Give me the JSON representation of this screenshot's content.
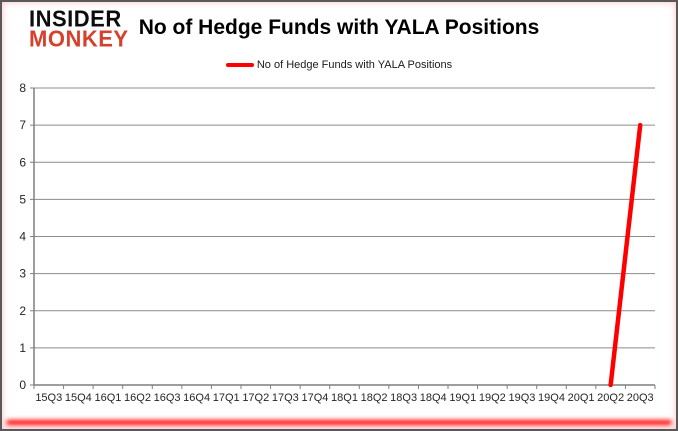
{
  "logo": {
    "line1": "INSIDER",
    "line2": "MONKEY"
  },
  "header": {
    "title": "No of Hedge Funds with YALA Positions"
  },
  "legend": {
    "label": "No of Hedge Funds with YALA Positions"
  },
  "colors": {
    "series": "#ff0000",
    "grid": "#8c8c8c",
    "axis": "#7f7f7f",
    "tick_text": "#262626",
    "logo_black": "#0d0d0d",
    "logo_red": "#d6402c",
    "glow": "#ff0000"
  },
  "chart_data": {
    "type": "line",
    "title": "No of Hedge Funds with YALA Positions",
    "categories": [
      "15Q3",
      "15Q4",
      "16Q1",
      "16Q2",
      "16Q3",
      "16Q4",
      "17Q1",
      "17Q2",
      "17Q3",
      "17Q4",
      "18Q1",
      "18Q2",
      "18Q3",
      "18Q4",
      "19Q1",
      "19Q2",
      "19Q3",
      "19Q4",
      "20Q1",
      "20Q2",
      "20Q3"
    ],
    "series": [
      {
        "name": "No of Hedge Funds with YALA Positions",
        "color": "#ff0000",
        "values": [
          null,
          null,
          null,
          null,
          null,
          null,
          null,
          null,
          null,
          null,
          null,
          null,
          null,
          null,
          null,
          null,
          null,
          null,
          null,
          0,
          7
        ]
      }
    ],
    "xlabel": "",
    "ylabel": "",
    "ylim": [
      0,
      8
    ],
    "ytick_step": 1,
    "grid": true,
    "legend_position": "top-center"
  }
}
